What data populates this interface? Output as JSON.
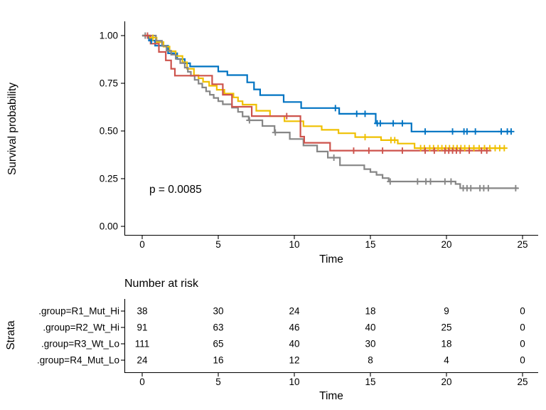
{
  "figure": {
    "p_value": "p = 0.0085",
    "ylabel": "Survival probability",
    "xlabel": "Time",
    "risk_table_title": "Number at risk",
    "strata_axis_label": "Strata",
    "table_xlabel": "Time"
  },
  "chart_data": {
    "type": "line",
    "subtype": "kaplan-meier-step",
    "title": "",
    "xlabel": "Time",
    "ylabel": "Survival probability",
    "xlim": [
      0,
      25
    ],
    "ylim": [
      0.0,
      1.0
    ],
    "x_ticks": [
      0,
      5,
      10,
      15,
      20,
      25
    ],
    "y_ticks": [
      {
        "label": "1.00",
        "value": 1.0
      },
      {
        "label": "0.75",
        "value": 0.75
      },
      {
        "label": "0.50",
        "value": 0.5
      },
      {
        "label": "0.25",
        "value": 0.25
      },
      {
        "label": "0.00",
        "value": 0.0
      }
    ],
    "grid": false,
    "legend_position": "none",
    "annotations": [
      {
        "text": "p = 0.0085",
        "x": 0.5,
        "y": 0.2
      }
    ],
    "series": [
      {
        "name": ".group=R1_Mut_Hi",
        "color": "#0073C2",
        "steps": [
          [
            0,
            1.0
          ],
          [
            0.45,
            0.974
          ],
          [
            0.85,
            0.947
          ],
          [
            1.7,
            0.907
          ],
          [
            2.3,
            0.877
          ],
          [
            2.8,
            0.855
          ],
          [
            3.15,
            0.838
          ],
          [
            5.0,
            0.812
          ],
          [
            5.6,
            0.793
          ],
          [
            6.9,
            0.755
          ],
          [
            7.35,
            0.718
          ],
          [
            7.75,
            0.688
          ],
          [
            9.3,
            0.652
          ],
          [
            10.45,
            0.62
          ],
          [
            12.95,
            0.59
          ],
          [
            15.35,
            0.54
          ],
          [
            17.7,
            0.497
          ]
        ],
        "end_time": 24.25,
        "censor_times": [
          0.6,
          12.7,
          14.1,
          14.65,
          15.45,
          15.65,
          16.5,
          17.1,
          18.6,
          20.4,
          21.15,
          21.35,
          21.9,
          23.6,
          24.0,
          24.25
        ]
      },
      {
        "name": ".group=R2_Wt_Hi",
        "color": "#EFC000",
        "steps": [
          [
            0,
            1.0
          ],
          [
            0.5,
            0.989
          ],
          [
            0.95,
            0.966
          ],
          [
            1.4,
            0.942
          ],
          [
            1.8,
            0.918
          ],
          [
            2.2,
            0.893
          ],
          [
            2.65,
            0.86
          ],
          [
            2.95,
            0.826
          ],
          [
            3.4,
            0.792
          ],
          [
            3.7,
            0.776
          ],
          [
            4.0,
            0.758
          ],
          [
            4.4,
            0.737
          ],
          [
            4.9,
            0.716
          ],
          [
            5.4,
            0.696
          ],
          [
            6.0,
            0.676
          ],
          [
            6.3,
            0.656
          ],
          [
            6.6,
            0.638
          ],
          [
            7.5,
            0.606
          ],
          [
            8.4,
            0.578
          ],
          [
            9.35,
            0.551
          ],
          [
            10.6,
            0.525
          ],
          [
            11.8,
            0.506
          ],
          [
            12.9,
            0.488
          ],
          [
            14.0,
            0.468
          ],
          [
            15.7,
            0.452
          ],
          [
            16.8,
            0.434
          ],
          [
            17.9,
            0.41
          ]
        ],
        "end_time": 23.8,
        "censor_times": [
          0.7,
          14.65,
          16.35,
          16.6,
          18.3,
          18.55,
          18.9,
          19.15,
          19.45,
          19.7,
          19.95,
          20.2,
          20.45,
          20.7,
          20.95,
          21.2,
          21.5,
          21.8,
          22.15,
          22.5,
          22.85,
          23.2,
          23.5,
          23.8
        ]
      },
      {
        "name": ".group=R3_Wt_Lo",
        "color": "#868686",
        "steps": [
          [
            0,
            1.0
          ],
          [
            0.9,
            0.973
          ],
          [
            1.3,
            0.946
          ],
          [
            1.6,
            0.921
          ],
          [
            1.9,
            0.9
          ],
          [
            2.2,
            0.878
          ],
          [
            2.5,
            0.856
          ],
          [
            2.8,
            0.832
          ],
          [
            3.0,
            0.81
          ],
          [
            3.2,
            0.789
          ],
          [
            3.45,
            0.768
          ],
          [
            3.7,
            0.748
          ],
          [
            3.95,
            0.728
          ],
          [
            4.2,
            0.708
          ],
          [
            4.45,
            0.69
          ],
          [
            4.7,
            0.673
          ],
          [
            5.0,
            0.656
          ],
          [
            5.3,
            0.64
          ],
          [
            5.9,
            0.622
          ],
          [
            6.3,
            0.6
          ],
          [
            6.6,
            0.576
          ],
          [
            7.0,
            0.556
          ],
          [
            7.9,
            0.526
          ],
          [
            8.7,
            0.492
          ],
          [
            9.7,
            0.458
          ],
          [
            10.6,
            0.424
          ],
          [
            11.5,
            0.392
          ],
          [
            12.2,
            0.36
          ],
          [
            13.0,
            0.32
          ],
          [
            14.6,
            0.3
          ],
          [
            15.0,
            0.285
          ],
          [
            15.4,
            0.27
          ],
          [
            15.8,
            0.253
          ],
          [
            16.2,
            0.235
          ],
          [
            20.6,
            0.222
          ],
          [
            20.9,
            0.2
          ]
        ],
        "end_time": 24.7,
        "censor_times": [
          0.2,
          7.05,
          8.75,
          12.6,
          16.3,
          18.1,
          18.65,
          18.95,
          19.9,
          20.3,
          21.1,
          21.35,
          21.6,
          22.2,
          22.45,
          22.75,
          24.55
        ]
      },
      {
        "name": ".group=R4_Mut_Lo",
        "color": "#CD534C",
        "steps": [
          [
            0,
            1.0
          ],
          [
            0.55,
            0.958
          ],
          [
            1.1,
            0.914
          ],
          [
            1.55,
            0.87
          ],
          [
            1.9,
            0.826
          ],
          [
            2.15,
            0.79
          ],
          [
            4.6,
            0.745
          ],
          [
            5.3,
            0.69
          ],
          [
            5.9,
            0.627
          ],
          [
            7.2,
            0.578
          ],
          [
            10.4,
            0.47
          ],
          [
            10.65,
            0.438
          ],
          [
            12.35,
            0.397
          ]
        ],
        "end_time": 22.95,
        "censor_times": [
          0.35,
          9.5,
          13.9,
          14.9,
          15.8,
          17.1,
          18.6,
          19.2,
          19.9,
          20.15,
          20.4,
          20.65,
          20.9,
          21.5,
          22.3,
          22.65
        ]
      }
    ],
    "risk_table": {
      "title": "Number at risk",
      "axis_label": "Strata",
      "xlabel": "Time",
      "time_points": [
        0,
        5,
        10,
        15,
        20,
        25
      ],
      "rows": [
        {
          "label": ".group=R1_Mut_Hi",
          "color": "#0073C2",
          "counts": [
            38,
            30,
            24,
            18,
            9,
            0
          ]
        },
        {
          "label": ".group=R2_Wt_Hi",
          "color": "#EFC000",
          "counts": [
            91,
            63,
            46,
            40,
            25,
            0
          ]
        },
        {
          "label": ".group=R3_Wt_Lo",
          "color": "#868686",
          "counts": [
            111,
            65,
            40,
            30,
            18,
            0
          ]
        },
        {
          "label": ".group=R4_Mut_Lo",
          "color": "#CD534C",
          "counts": [
            24,
            16,
            12,
            8,
            4,
            0
          ]
        }
      ]
    }
  }
}
